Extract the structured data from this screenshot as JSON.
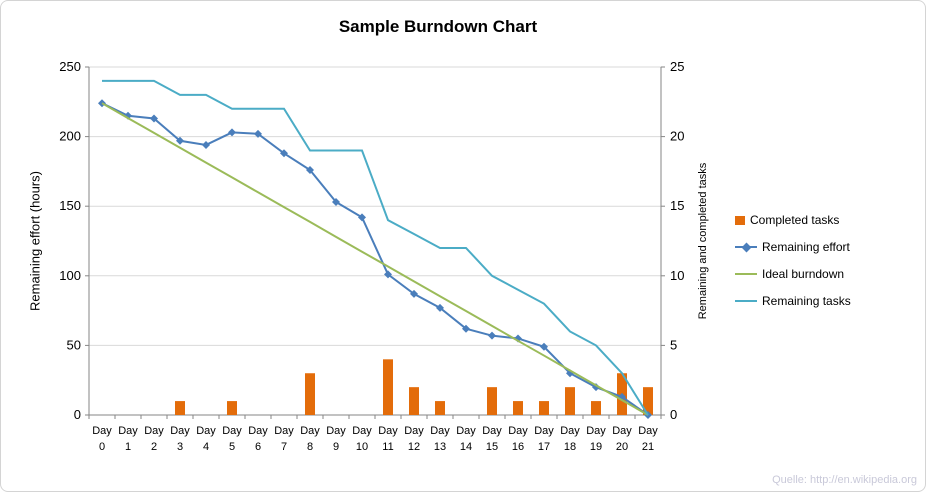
{
  "footer": {
    "credit": "Quelle: http://en.wikipedia.org"
  },
  "chart_data": {
    "type": "combo",
    "title": "Sample Burndown Chart",
    "x_label_prefix": "Day",
    "categories": [
      "0",
      "1",
      "2",
      "3",
      "4",
      "5",
      "6",
      "7",
      "8",
      "9",
      "10",
      "11",
      "12",
      "13",
      "14",
      "15",
      "16",
      "17",
      "18",
      "19",
      "20",
      "21"
    ],
    "grid": true,
    "legend_position": "right",
    "left_axis": {
      "label": "Remaining effort (hours)",
      "min": 0,
      "max": 250,
      "step": 50
    },
    "right_axis": {
      "label": "Remaining and completed tasks",
      "min": 0,
      "max": 25,
      "step": 5
    },
    "series": [
      {
        "name": "Completed tasks",
        "type": "bar",
        "axis": "right",
        "color": "#E36C0A",
        "values": [
          0,
          0,
          0,
          1,
          0,
          1,
          0,
          0,
          3,
          0,
          0,
          4,
          2,
          1,
          0,
          2,
          1,
          1,
          2,
          1,
          3,
          2
        ]
      },
      {
        "name": "Remaining effort",
        "type": "line",
        "marker": "diamond",
        "axis": "left",
        "color": "#4A7EBB",
        "values": [
          224,
          215,
          213,
          197,
          194,
          203,
          202,
          188,
          176,
          153,
          142,
          101,
          87,
          77,
          62,
          57,
          55,
          49,
          30,
          20,
          13,
          0
        ]
      },
      {
        "name": "Ideal burndown",
        "type": "line",
        "axis": "left",
        "color": "#9BBB59",
        "values": [
          224,
          213.3,
          202.7,
          192,
          181.3,
          170.7,
          160,
          149.3,
          138.7,
          128,
          117.3,
          106.7,
          96,
          85.3,
          74.7,
          64,
          53.3,
          42.7,
          32,
          21.3,
          10.7,
          0
        ]
      },
      {
        "name": "Remaining tasks",
        "type": "line",
        "axis": "right",
        "color": "#4BACC6",
        "values": [
          24,
          24,
          24,
          23,
          23,
          22,
          22,
          22,
          19,
          19,
          19,
          14,
          13,
          12,
          12,
          10,
          9,
          8,
          6,
          5,
          3,
          0
        ]
      }
    ]
  }
}
